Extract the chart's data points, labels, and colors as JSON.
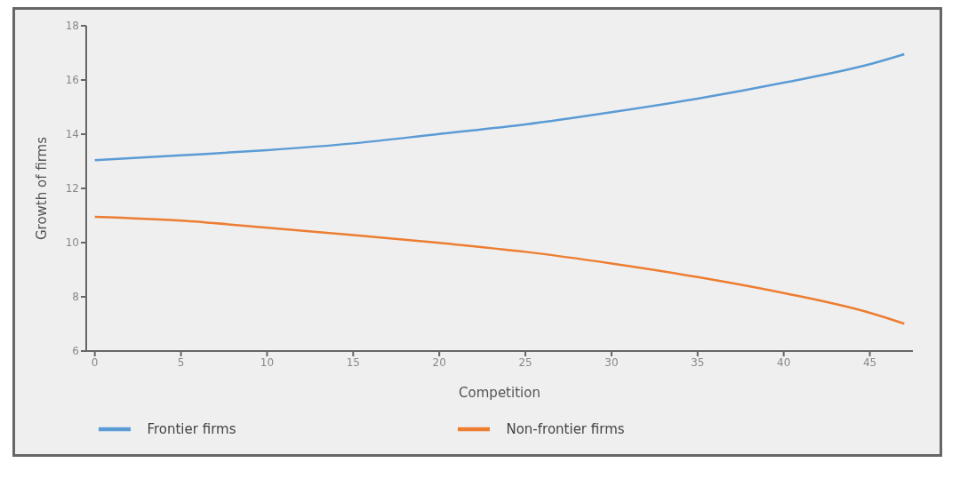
{
  "chart_data": {
    "type": "line",
    "xlabel": "Competition",
    "ylabel": "Growth of firms",
    "x": [
      0,
      5,
      10,
      15,
      20,
      25,
      30,
      35,
      40,
      45,
      47
    ],
    "series": [
      {
        "name": "Frontier firms",
        "color": "#5b9bd5",
        "values": [
          13.04,
          13.22,
          13.41,
          13.66,
          14.01,
          14.36,
          14.81,
          15.31,
          15.9,
          16.58,
          16.95
        ]
      },
      {
        "name": "Non-frontier firms",
        "color": "#ed7d31",
        "values": [
          10.95,
          10.81,
          10.55,
          10.28,
          9.99,
          9.66,
          9.23,
          8.73,
          8.14,
          7.41,
          7.01
        ]
      }
    ],
    "xlim": [
      -0.5,
      47.5
    ],
    "xticks": [
      0,
      5,
      10,
      15,
      20,
      25,
      30,
      35,
      40,
      45
    ],
    "ylim": [
      6,
      18
    ],
    "yticks": [
      6,
      8,
      10,
      12,
      14,
      16,
      18
    ],
    "grid": false,
    "legend": "bottom",
    "marker": "none",
    "line_style": "solid"
  }
}
